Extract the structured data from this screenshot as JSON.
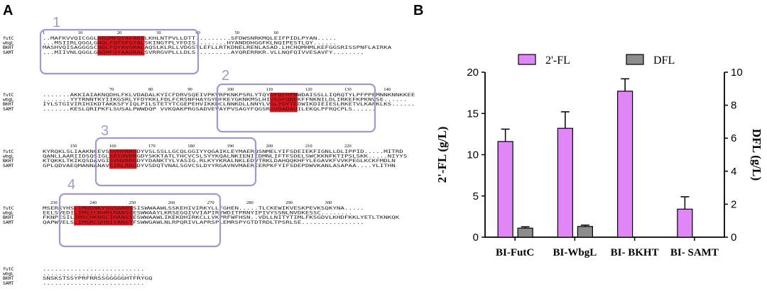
{
  "panels": {
    "a": "A",
    "b": "B"
  },
  "alignment": {
    "species": [
      "futC",
      "wbgL",
      "BKHT",
      "SAMT"
    ],
    "blocks": [
      {
        "ruler": [
          {
            "n": "1",
            "col": 1
          },
          {
            "n": "10",
            "col": 10
          },
          {
            "n": "20",
            "col": 20
          },
          {
            "n": "30",
            "col": 30
          },
          {
            "n": "40",
            "col": 40
          },
          {
            "n": "50",
            "col": 50
          },
          {
            "n": "60",
            "col": 60
          }
        ],
        "rows": [
          "..MAFKVVQICGGLGNQMFQYAFAKSLKHLNTPVLLDTT.........SFDWSNRKMQLEIFPIDLPYAN.....",
          "...MSIIRLQGGLGNQLFQFSFGYALSKINGTPLYFDIS........HYANDDHGGFKLNQIPESTLQY......",
          "MASHVQISAGGGSCNQLFQYAVGRALAQSLKLRLLVDGSTLEFLLRTKDNELRENLASAD.LHCHQMHMLKEFGGSRISSPNFLAIRKA",
          "...MIIVNLQGGLGNQMFQYAAGRALSVRRGVPLLLDLS.........AYQRERRKR.VLLNQFQIVVESAVFY........"
        ],
        "box": "1"
      },
      {
        "ruler": [
          {
            "n": "70",
            "col": 18
          },
          {
            "n": "80",
            "col": 28
          },
          {
            "n": "90",
            "col": 38
          },
          {
            "n": "100",
            "col": 48
          },
          {
            "n": "110",
            "col": 58
          },
          {
            "n": "120",
            "col": 68
          },
          {
            "n": "130",
            "col": 78
          },
          {
            "n": "140",
            "col": 88
          }
        ],
        "rows": [
          ".......AKKIAIAKNQDHLFKLVDADALKYICFDRVSQEIVPKVRPKNKPSRLYTQYGFDFHPNWDAISSLLIQRQTYLPFPPEMNNKNNKKEE",
          ".......YYTRNNTKYIIKGSRLYFDYKKLFDLFCRSNFHAYGYDFKEYGKNKMSLHIVGSFQNEKFFNKNILDLIRKEFKPKNVSE......",
          "IYLSTGIVIRIHIKDTAKKSFYIQLPILSTETYTCGEPEHVIKKDCLNNKDLLNNYLVGLYGYTEDWIKDIEIESLRKETVLKAPKLKS......",
          ".......KESLQRIPKFLSUSALPWWDQP VVKQAKPRGSADVEVAYPVSAGYFQGSRGVDADAUILEKQLPFRQCPLS......"
        ],
        "box": "2"
      },
      {
        "ruler": [
          {
            "n": "150",
            "col": 8
          },
          {
            "n": "160",
            "col": 18
          },
          {
            "n": "170",
            "col": 28
          },
          {
            "n": "180",
            "col": 38
          },
          {
            "n": "190",
            "col": 48
          },
          {
            "n": "200",
            "col": 58
          },
          {
            "n": "210",
            "col": 68
          },
          {
            "n": "220",
            "col": 78
          }
        ],
        "rows": [
          "KYRQKLSLIAAKNCEVSSVHVRRGDYVSLSSLLGCQLGGIYYQGAIKLEYMAERQSNMELYIFSDEIEKFIGNLLDLIPPID.....MITRD",
          "QANLLAARIIDSQSIGLSRIHVRRGDYSKKTATLTHCVCSLSYYKQALNKIENIIDMNLIFTFSDELSWCKKNFKTIPSLSKK.....NIYYS",
          "KTQKKLTKIKQSDAVGISVHVRRGDYYDANKTYLYASIG.RLKYYKRALNKLEDVTRKLDAHQQKHFYLEGAVKFVVKPEGLKCKFMDLN",
          "GPLQDVAEQMANNANAVSIRLRRGDYVSDQTVNALSGVCSLDYYRGAVNVMAERIERPKFYIFSDEPDWVKANLASAPAA....YLITHN"
        ],
        "box": "3"
      },
      {
        "ruler": [
          {
            "n": "230",
            "col": 3
          },
          {
            "n": "240",
            "col": 13
          },
          {
            "n": "250",
            "col": 23
          },
          {
            "n": "260",
            "col": 33
          },
          {
            "n": "270",
            "col": 43
          },
          {
            "n": "280",
            "col": 53
          },
          {
            "n": "290",
            "col": 63
          },
          {
            "n": "300",
            "col": 73
          }
        ],
        "rows": [
          "MSERKYHSLIMQDNKYSGSDANSSISWWAAWLSSKEHIVIRKYLLFGHEN.....TLCKEWIKVESKPEVKSQKYNA.....",
          "EELSVEDILIMSICKHMIMANSSESWWAAYLKRSEGQIVVIAPIRYWDITPRNYIPIVYSSNLNVDKESSC........",
          "FKNPESILIMSCHKNGCIMANSSESWWAAWLIKEKDHIRKCLLVKPRFWFHSN..VDLLNITYTIMLFKSGDVLKHDFKKLYETLTKNKQK",
          "QAPWVELSLIMSRCQHNIVANSTFSWWGAWLNLRPQRIVLAPRSPLEMRSPYGTDTRDLTPSRLSE................"
        ],
        "box": "4"
      },
      {
        "ruler": [],
        "rows": [
          "..........................",
          "..........................",
          "SNSKSTSSYPRFRRSSGGGGGHTFRYGQ",
          ".........................."
        ],
        "box": ""
      }
    ]
  },
  "chart_data": {
    "type": "bar",
    "categories": [
      "BI-FutC",
      "BI-WbgL",
      "BI- BKHT",
      "BI- SAMT"
    ],
    "series": [
      {
        "name": "2'-FL",
        "axis": "left",
        "color": "#e186f7",
        "values": [
          11.6,
          13.2,
          17.7,
          3.4
        ],
        "errors": [
          1.5,
          2.0,
          1.5,
          1.5
        ]
      },
      {
        "name": "DFL",
        "axis": "right",
        "color": "#8c8c8c",
        "values": [
          0.55,
          0.65,
          0,
          0
        ],
        "errors": [
          0.08,
          0.08,
          0,
          0
        ]
      }
    ],
    "ylabel": "2'-FL (g/L)",
    "y2label": "DFL (g/L)",
    "ylim": [
      0,
      20
    ],
    "y2lim": [
      0,
      10
    ],
    "yticks": [
      0,
      5,
      10,
      15,
      20
    ],
    "y2ticks": [
      0,
      2,
      4,
      6,
      8,
      10
    ],
    "legend_position": "top",
    "grid": false
  }
}
